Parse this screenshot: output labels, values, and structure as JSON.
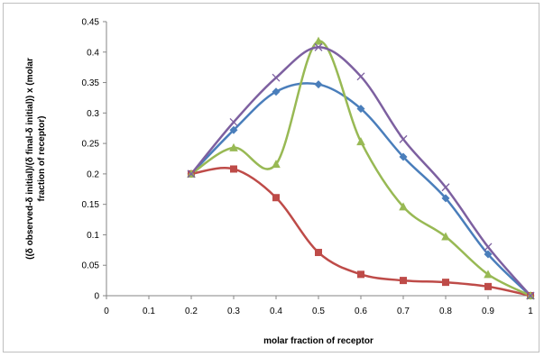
{
  "chart_data": {
    "type": "line",
    "title": "",
    "xlabel": "molar fraction of receptor",
    "ylabel_lines": [
      "((δ observed-δ initial)/(δ final-δ initial)) x (molar",
      "fraction of receptor)"
    ],
    "xlim": [
      0,
      1
    ],
    "ylim": [
      0,
      0.45
    ],
    "x_ticks": [
      "0",
      "0.1",
      "0.2",
      "0.3",
      "0.4",
      "0.5",
      "0.6",
      "0.7",
      "0.8",
      "0.9",
      "1"
    ],
    "y_ticks": [
      "0",
      "0.05",
      "0.1",
      "0.15",
      "0.2",
      "0.25",
      "0.3",
      "0.35",
      "0.4",
      "0.45"
    ],
    "grid": false,
    "legend": "none",
    "smoothed": true,
    "series": [
      {
        "color": "#4a7ebb",
        "marker": "diamond",
        "x": [
          0.2,
          0.3,
          0.4,
          0.5,
          0.6,
          0.7,
          0.8,
          0.9,
          1.0
        ],
        "y": [
          0.2,
          0.272,
          0.335,
          0.347,
          0.307,
          0.228,
          0.16,
          0.068,
          0.0
        ]
      },
      {
        "color": "#be4b48",
        "marker": "square",
        "x": [
          0.2,
          0.3,
          0.4,
          0.5,
          0.6,
          0.7,
          0.8,
          0.9,
          1.0
        ],
        "y": [
          0.2,
          0.208,
          0.161,
          0.071,
          0.035,
          0.025,
          0.022,
          0.015,
          0.0
        ]
      },
      {
        "color": "#98b954",
        "marker": "triangle",
        "x": [
          0.2,
          0.3,
          0.4,
          0.5,
          0.6,
          0.7,
          0.8,
          0.9,
          1.0
        ],
        "y": [
          0.2,
          0.243,
          0.216,
          0.418,
          0.253,
          0.146,
          0.097,
          0.035,
          0.0
        ]
      },
      {
        "color": "#7d60a0",
        "marker": "x",
        "x": [
          0.2,
          0.3,
          0.4,
          0.5,
          0.6,
          0.7,
          0.8,
          0.9,
          1.0
        ],
        "y": [
          0.2,
          0.285,
          0.358,
          0.408,
          0.36,
          0.257,
          0.178,
          0.08,
          0.0
        ]
      }
    ]
  }
}
